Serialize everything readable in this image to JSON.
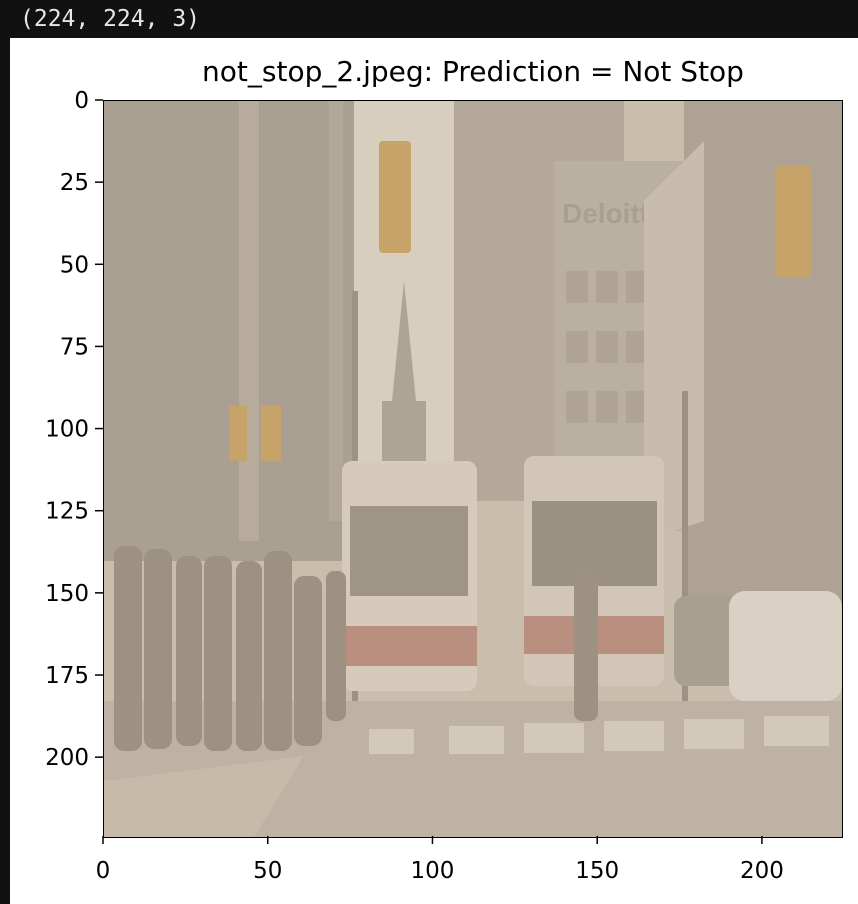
{
  "output_header": {
    "text": "(224, 224, 3)"
  },
  "figure": {
    "title": "not_stop_2.jpeg: Prediction = Not Stop",
    "image_source": "not_stop_2.jpeg",
    "prediction": "Not Stop",
    "image_shape": [
      224,
      224,
      3
    ],
    "frame_color": "#000000",
    "background_color": "#ffffff"
  },
  "axes": {
    "x": {
      "range": [
        0,
        224
      ],
      "ticks": [
        0,
        50,
        100,
        150,
        200
      ],
      "tick_labels": [
        "0",
        "50",
        "100",
        "150",
        "200"
      ]
    },
    "y": {
      "range": [
        0,
        224
      ],
      "inverted": true,
      "ticks": [
        0,
        25,
        50,
        75,
        100,
        125,
        150,
        175,
        200
      ],
      "tick_labels": [
        "0",
        "25",
        "50",
        "75",
        "100",
        "125",
        "150",
        "175",
        "200"
      ]
    }
  },
  "photo": {
    "description_tags": [
      "street",
      "buses",
      "pedestrians",
      "traffic-lights",
      "buildings",
      "car",
      "crosswalk"
    ],
    "building_sign_text": "Deloitte",
    "palette": {
      "haze": "#cbbfae",
      "building_dark": "#9f9689",
      "building_mid": "#b5ab9c",
      "sky": "#ddd3c4",
      "road": "#b9aea0",
      "crosswalk": "#d6ccbd",
      "bus_body": "#d8cec0",
      "bus_red": "#b47f72",
      "traffic_light": "#c59a52",
      "car_white": "#ded7cb",
      "people": "#8c8275"
    }
  }
}
